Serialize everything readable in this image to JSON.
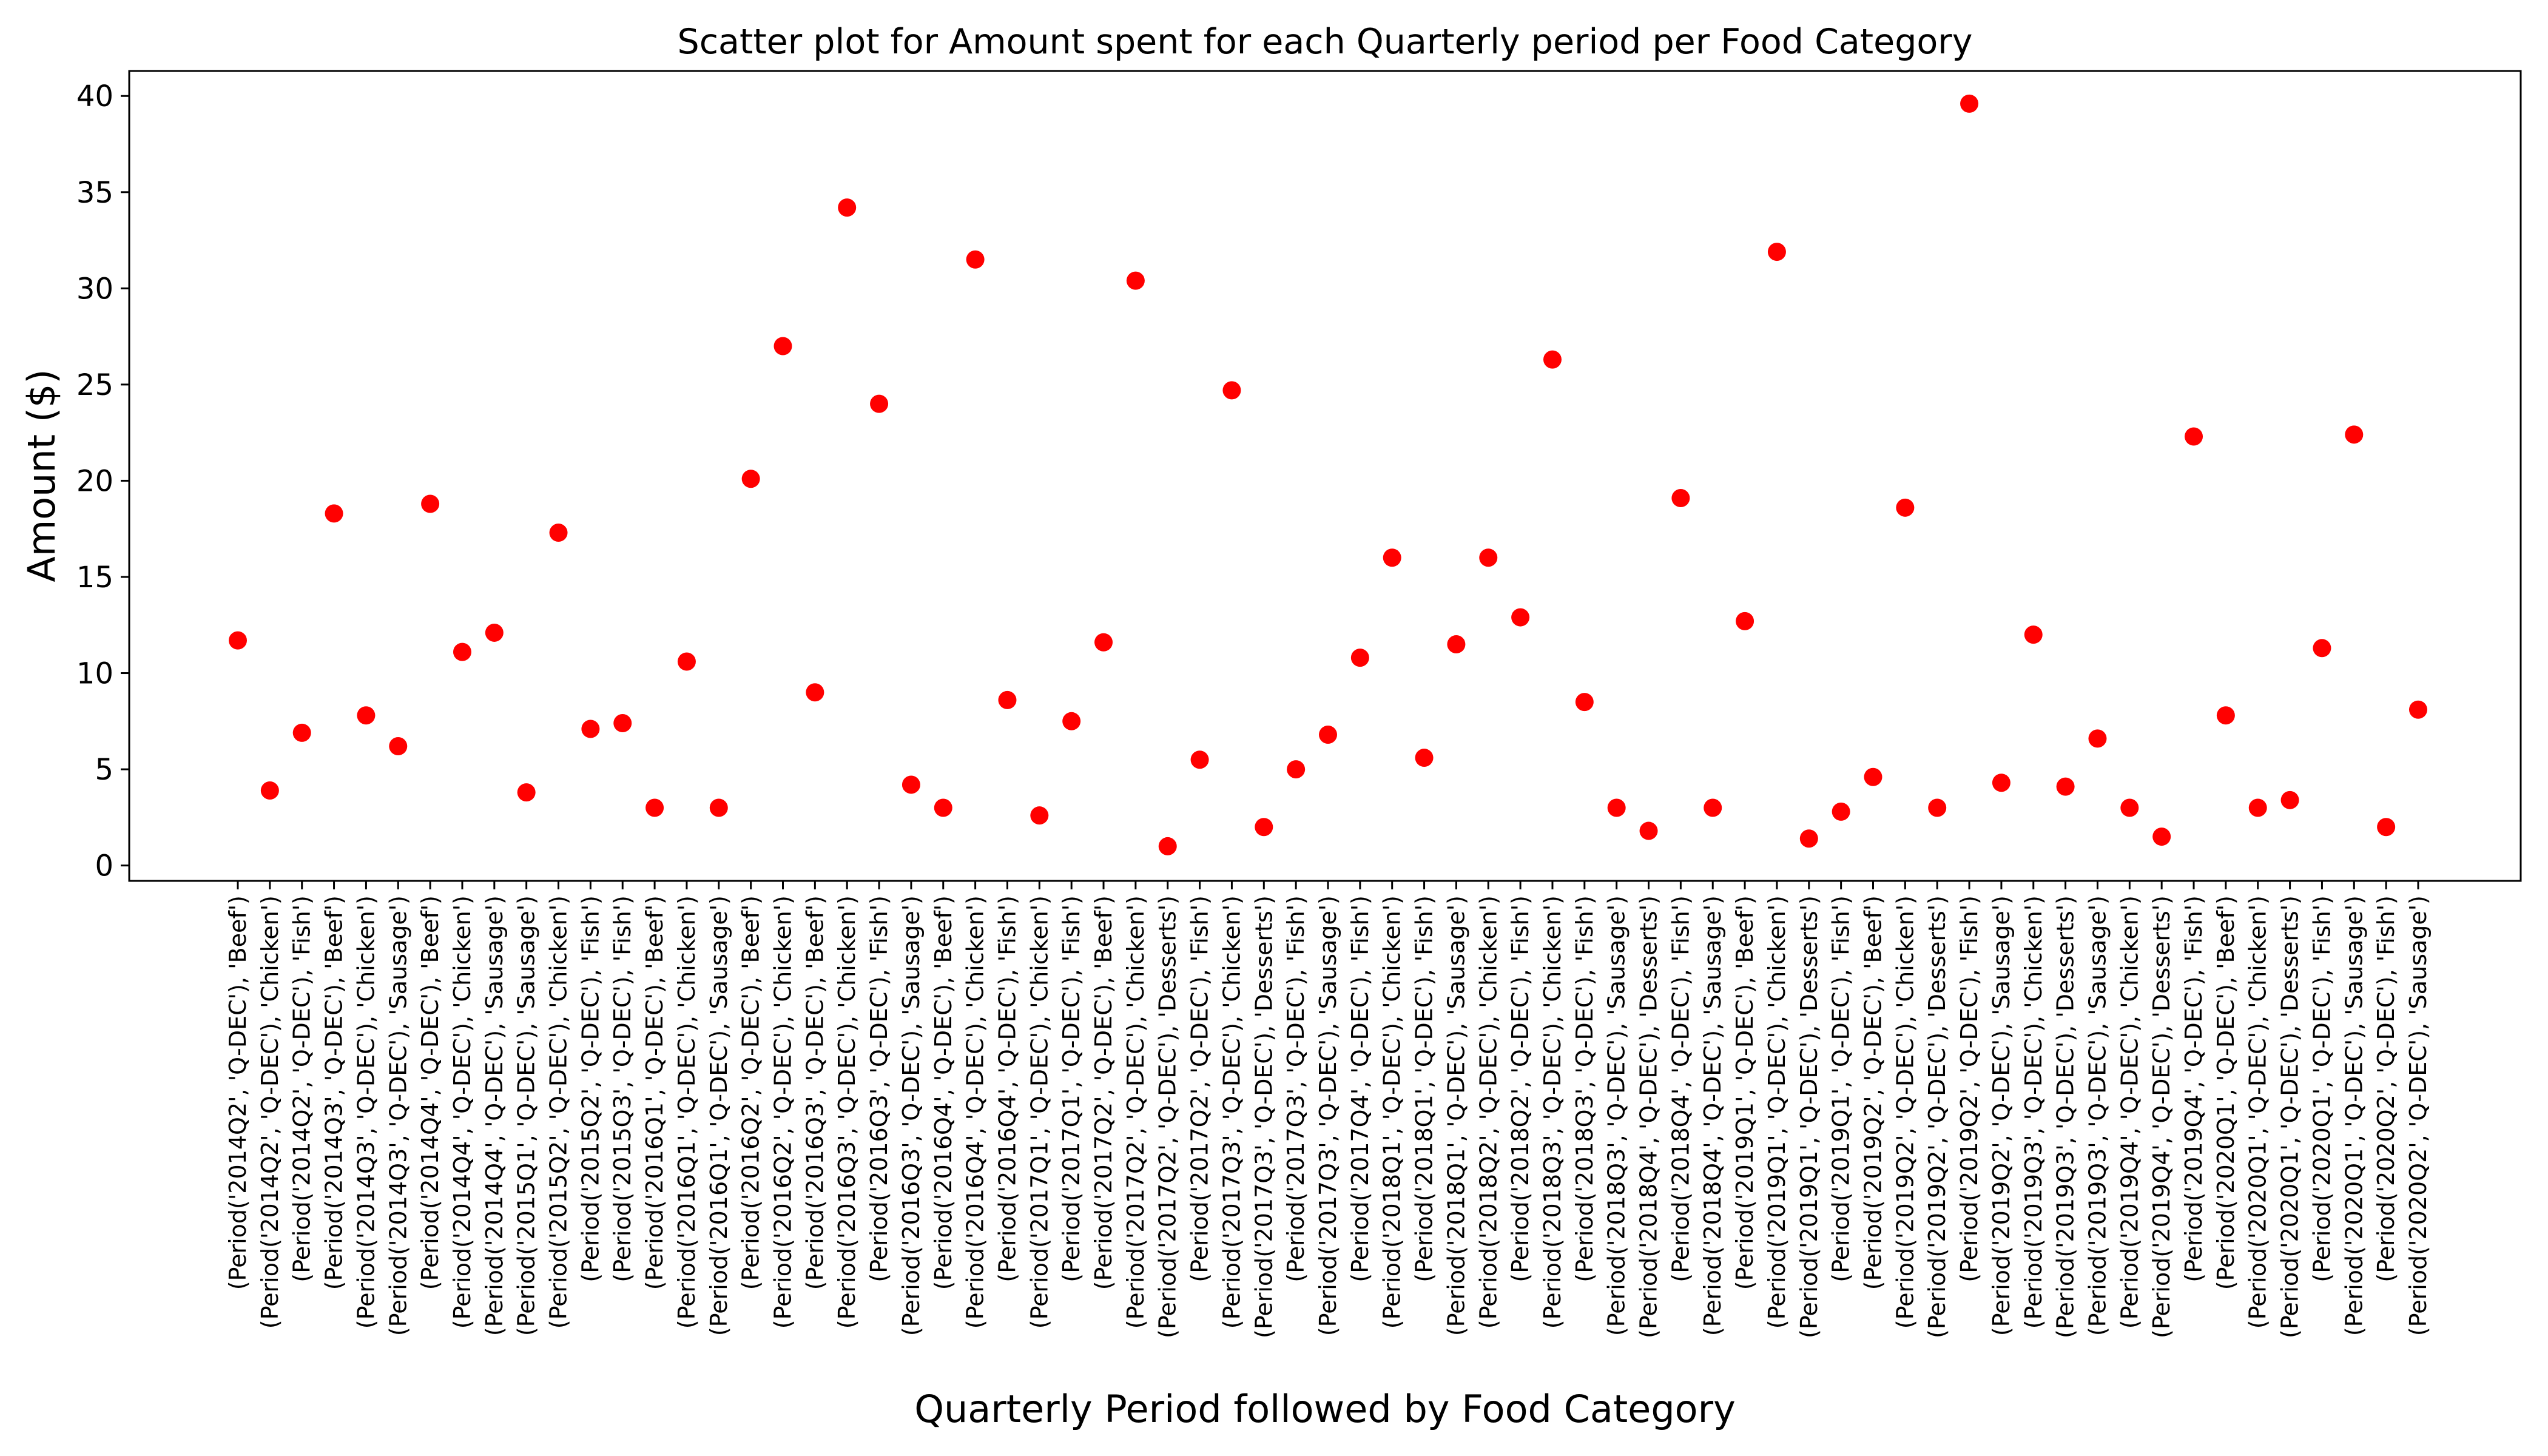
{
  "chart_data": {
    "type": "scatter",
    "title": "Scatter plot for Amount spent for each Quarterly period per Food Category",
    "xlabel": "Quarterly Period followed by Food Category",
    "ylabel": "Amount ($)",
    "ylim": [
      -0.8,
      41.3
    ],
    "yticks": [
      0,
      5,
      10,
      15,
      20,
      25,
      30,
      35,
      40
    ],
    "grid": false,
    "marker_color": "#ff0000",
    "categories": [
      "(Period('2014Q2', 'Q-DEC'), 'Beef')",
      "(Period('2014Q2', 'Q-DEC'), 'Chicken')",
      "(Period('2014Q2', 'Q-DEC'), 'Fish')",
      "(Period('2014Q3', 'Q-DEC'), 'Beef')",
      "(Period('2014Q3', 'Q-DEC'), 'Chicken')",
      "(Period('2014Q3', 'Q-DEC'), 'Sausage')",
      "(Period('2014Q4', 'Q-DEC'), 'Beef')",
      "(Period('2014Q4', 'Q-DEC'), 'Chicken')",
      "(Period('2014Q4', 'Q-DEC'), 'Sausage')",
      "(Period('2015Q1', 'Q-DEC'), 'Sausage')",
      "(Period('2015Q2', 'Q-DEC'), 'Chicken')",
      "(Period('2015Q2', 'Q-DEC'), 'Fish')",
      "(Period('2015Q3', 'Q-DEC'), 'Fish')",
      "(Period('2016Q1', 'Q-DEC'), 'Beef')",
      "(Period('2016Q1', 'Q-DEC'), 'Chicken')",
      "(Period('2016Q1', 'Q-DEC'), 'Sausage')",
      "(Period('2016Q2', 'Q-DEC'), 'Beef')",
      "(Period('2016Q2', 'Q-DEC'), 'Chicken')",
      "(Period('2016Q3', 'Q-DEC'), 'Beef')",
      "(Period('2016Q3', 'Q-DEC'), 'Chicken')",
      "(Period('2016Q3', 'Q-DEC'), 'Fish')",
      "(Period('2016Q3', 'Q-DEC'), 'Sausage')",
      "(Period('2016Q4', 'Q-DEC'), 'Beef')",
      "(Period('2016Q4', 'Q-DEC'), 'Chicken')",
      "(Period('2016Q4', 'Q-DEC'), 'Fish')",
      "(Period('2017Q1', 'Q-DEC'), 'Chicken')",
      "(Period('2017Q1', 'Q-DEC'), 'Fish')",
      "(Period('2017Q2', 'Q-DEC'), 'Beef')",
      "(Period('2017Q2', 'Q-DEC'), 'Chicken')",
      "(Period('2017Q2', 'Q-DEC'), 'Desserts')",
      "(Period('2017Q2', 'Q-DEC'), 'Fish')",
      "(Period('2017Q3', 'Q-DEC'), 'Chicken')",
      "(Period('2017Q3', 'Q-DEC'), 'Desserts')",
      "(Period('2017Q3', 'Q-DEC'), 'Fish')",
      "(Period('2017Q3', 'Q-DEC'), 'Sausage')",
      "(Period('2017Q4', 'Q-DEC'), 'Fish')",
      "(Period('2018Q1', 'Q-DEC'), 'Chicken')",
      "(Period('2018Q1', 'Q-DEC'), 'Fish')",
      "(Period('2018Q1', 'Q-DEC'), 'Sausage')",
      "(Period('2018Q2', 'Q-DEC'), 'Chicken')",
      "(Period('2018Q2', 'Q-DEC'), 'Fish')",
      "(Period('2018Q3', 'Q-DEC'), 'Chicken')",
      "(Period('2018Q3', 'Q-DEC'), 'Fish')",
      "(Period('2018Q3', 'Q-DEC'), 'Sausage')",
      "(Period('2018Q4', 'Q-DEC'), 'Desserts')",
      "(Period('2018Q4', 'Q-DEC'), 'Fish')",
      "(Period('2018Q4', 'Q-DEC'), 'Sausage')",
      "(Period('2019Q1', 'Q-DEC'), 'Beef')",
      "(Period('2019Q1', 'Q-DEC'), 'Chicken')",
      "(Period('2019Q1', 'Q-DEC'), 'Desserts')",
      "(Period('2019Q1', 'Q-DEC'), 'Fish')",
      "(Period('2019Q2', 'Q-DEC'), 'Beef')",
      "(Period('2019Q2', 'Q-DEC'), 'Chicken')",
      "(Period('2019Q2', 'Q-DEC'), 'Desserts')",
      "(Period('2019Q2', 'Q-DEC'), 'Fish')",
      "(Period('2019Q2', 'Q-DEC'), 'Sausage')",
      "(Period('2019Q3', 'Q-DEC'), 'Chicken')",
      "(Period('2019Q3', 'Q-DEC'), 'Desserts')",
      "(Period('2019Q3', 'Q-DEC'), 'Sausage')",
      "(Period('2019Q4', 'Q-DEC'), 'Chicken')",
      "(Period('2019Q4', 'Q-DEC'), 'Desserts')",
      "(Period('2019Q4', 'Q-DEC'), 'Fish')",
      "(Period('2020Q1', 'Q-DEC'), 'Beef')",
      "(Period('2020Q1', 'Q-DEC'), 'Chicken')",
      "(Period('2020Q1', 'Q-DEC'), 'Desserts')",
      "(Period('2020Q1', 'Q-DEC'), 'Fish')",
      "(Period('2020Q1', 'Q-DEC'), 'Sausage')",
      "(Period('2020Q2', 'Q-DEC'), 'Fish')",
      "(Period('2020Q2', 'Q-DEC'), 'Sausage')"
    ],
    "values": [
      11.7,
      3.9,
      6.9,
      18.3,
      7.8,
      6.2,
      18.8,
      11.1,
      12.1,
      3.8,
      17.3,
      7.1,
      7.4,
      3.0,
      10.6,
      3.0,
      20.1,
      27.0,
      9.0,
      34.2,
      24.0,
      4.2,
      3.0,
      31.5,
      8.6,
      2.6,
      7.5,
      11.6,
      30.4,
      1.0,
      5.5,
      24.7,
      2.0,
      5.0,
      6.8,
      10.8,
      16.0,
      5.6,
      11.5,
      16.0,
      12.9,
      26.3,
      8.5,
      3.0,
      1.8,
      19.1,
      3.0,
      12.7,
      31.9,
      1.4,
      2.8,
      4.6,
      18.6,
      3.0,
      39.6,
      4.3,
      12.0,
      4.1,
      6.6,
      3.0,
      1.5,
      22.3,
      7.8,
      3.0,
      3.4,
      11.3,
      22.4,
      2.0,
      8.1
    ]
  }
}
